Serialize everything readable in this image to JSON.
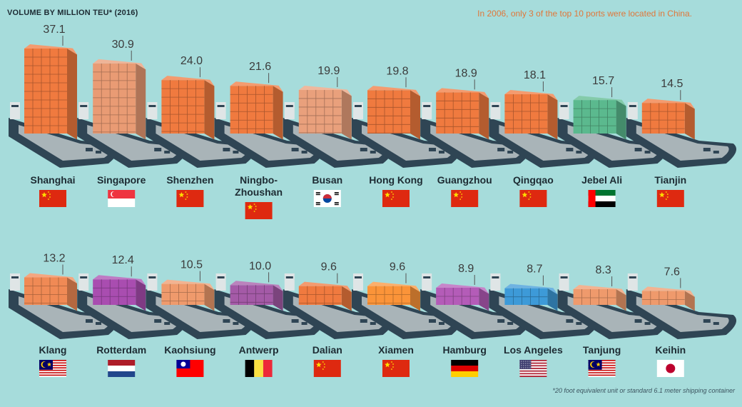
{
  "header": {
    "unit_label": "VOLUME BY MILLION TEU* (2016)",
    "note": "In 2006, only 3 of the top 10 ports were located in China."
  },
  "footnote": "*20 foot equivalent unit or standard 6.1 meter shipping container",
  "colors": {
    "background": "#a6dcdb",
    "china": "#e8501e",
    "other_asia": "#e8501e",
    "value_text": "#3b3b3b",
    "label_text": "#1d2b33"
  },
  "chart_data": {
    "type": "bar",
    "ylabel": "Volume by million TEU (2016)",
    "categories": [
      "Shanghai",
      "Singapore",
      "Shenzhen",
      "Ningbo-Zhoushan",
      "Busan",
      "Hong Kong",
      "Guangzhou",
      "Qingqao",
      "Jebel Ali",
      "Tianjin",
      "Klang",
      "Rotterdam",
      "Kaohsiung",
      "Antwerp",
      "Dalian",
      "Xiamen",
      "Hamburg",
      "Los Angeles",
      "Tanjung",
      "Keihin"
    ],
    "values": [
      37.1,
      30.9,
      24.0,
      21.6,
      19.9,
      19.8,
      18.9,
      18.1,
      15.7,
      14.5,
      13.2,
      12.4,
      10.5,
      10.0,
      9.6,
      9.6,
      8.9,
      8.7,
      8.3,
      7.6
    ],
    "value_labels": [
      "37.1",
      "30.9",
      "24.0",
      "21.6",
      "19.9",
      "19.8",
      "18.9",
      "18.1",
      "15.7",
      "14.5",
      "13.2",
      "12.4",
      "10.5",
      "10.0",
      "9.6",
      "9.6",
      "8.9",
      "8.7",
      "8.3",
      "7.6"
    ],
    "container_colors": [
      "#f07a3f",
      "#e99b74",
      "#f07a3f",
      "#f07a3f",
      "#e9a07c",
      "#f07a3f",
      "#f07a3f",
      "#f07a3f",
      "#5bb98e",
      "#f07a3f",
      "#f08a55",
      "#a94db0",
      "#ef9a6c",
      "#a45aa7",
      "#f07a3f",
      "#fb9439",
      "#b45cb8",
      "#3d9ad8",
      "#ef9a6c",
      "#ef9a6c"
    ],
    "countries": [
      "China",
      "Singapore",
      "China",
      "China",
      "South Korea",
      "China",
      "China",
      "China",
      "UAE",
      "China",
      "Malaysia",
      "Netherlands",
      "Taiwan",
      "Belgium",
      "China",
      "China",
      "Germany",
      "USA",
      "Malaysia",
      "Japan"
    ]
  }
}
